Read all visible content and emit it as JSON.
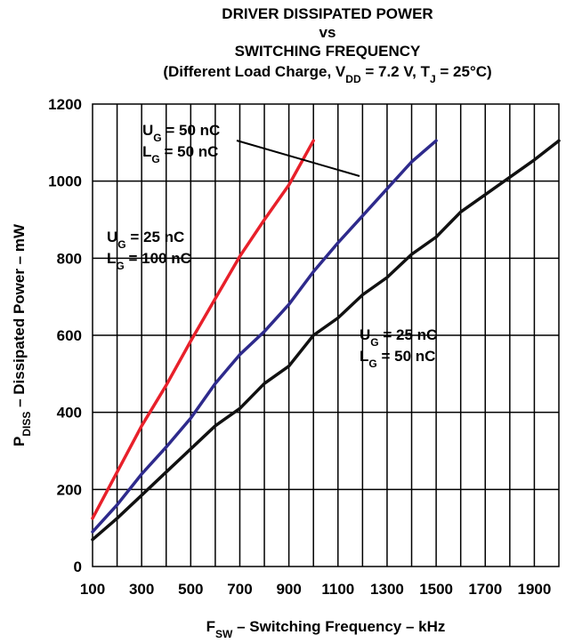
{
  "chart_data": {
    "type": "line",
    "title": {
      "line1": "DRIVER DISSIPATED POWER",
      "line2": "vs",
      "line3": "SWITCHING FREQUENCY",
      "line4_pre": "(Different Load Charge, V",
      "line4_sub1": "DD",
      "line4_mid": " = 7.2 V, T",
      "line4_sub2": "J",
      "line4_post": " = 25°C)"
    },
    "xlabel": {
      "main": "F",
      "sub": "SW",
      "rest": " – Switching Frequency – kHz"
    },
    "ylabel": {
      "main": "P",
      "sub": "DISS",
      "rest": " – Dissipated Power – mW"
    },
    "xlim": [
      100,
      2000
    ],
    "ylim": [
      0,
      1200
    ],
    "xticks": [
      100,
      300,
      500,
      700,
      900,
      1100,
      1300,
      1500,
      1700,
      1900
    ],
    "xtick_labels": [
      "100",
      "300",
      "500",
      "700",
      "900",
      "1100",
      "1300",
      "1500",
      "1700",
      "1900"
    ],
    "yticks": [
      0,
      200,
      400,
      600,
      800,
      1000,
      1200
    ],
    "ytick_labels": [
      "0",
      "200",
      "400",
      "600",
      "800",
      "1000",
      "1200"
    ],
    "grid": true,
    "series": [
      {
        "color": "#e8202a",
        "x": [
          100,
          200,
          300,
          400,
          500,
          600,
          700,
          800,
          900,
          1000
        ],
        "y": [
          125,
          245,
          365,
          470,
          585,
          695,
          805,
          900,
          990,
          1105
        ]
      },
      {
        "color": "#2e2a8c",
        "x": [
          100,
          200,
          300,
          400,
          500,
          600,
          700,
          800,
          900,
          1000,
          1100,
          1200,
          1300,
          1400,
          1500
        ],
        "y": [
          90,
          160,
          240,
          310,
          385,
          475,
          550,
          610,
          680,
          765,
          840,
          910,
          980,
          1050,
          1105
        ]
      },
      {
        "color": "#111111",
        "x": [
          100,
          200,
          300,
          400,
          500,
          600,
          700,
          800,
          900,
          1000,
          1100,
          1200,
          1300,
          1400,
          1500,
          1600,
          1700,
          1800,
          1900,
          2000
        ],
        "y": [
          70,
          125,
          185,
          245,
          305,
          365,
          410,
          475,
          520,
          600,
          645,
          705,
          750,
          810,
          855,
          920,
          965,
          1010,
          1055,
          1105
        ]
      }
    ],
    "annotations": [
      {
        "l1": "U",
        "s1": "G",
        "r1": " = 50 nC",
        "l2": "L",
        "s2": "G",
        "r2": " = 50 nC"
      },
      {
        "l1": "U",
        "s1": "G",
        "r1": " = 25 nC",
        "l2": "L",
        "s2": "G",
        "r2": " = 100 nC"
      },
      {
        "l1": "U",
        "s1": "G",
        "r1": " = 25 nC",
        "l2": "L",
        "s2": "G",
        "r2": " = 50 nC"
      }
    ]
  }
}
